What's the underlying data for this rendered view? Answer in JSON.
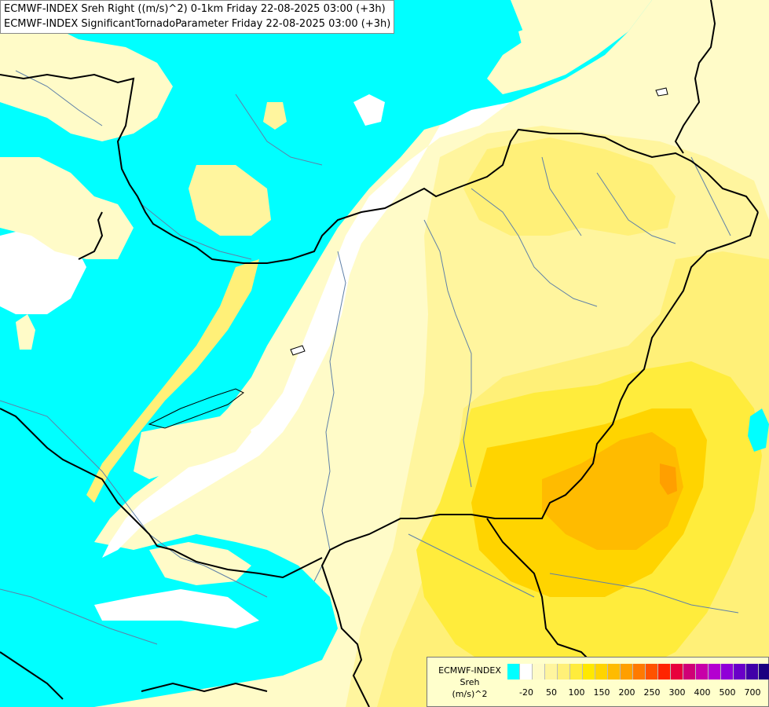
{
  "titles": {
    "line1": "ECMWF-INDEX Sreh Right ((m/s)^2) 0-1km Friday 22-08-2025 03:00 (+3h)",
    "line2": "ECMWF-INDEX SignificantTornadoParameter Friday 22-08-2025 03:00 (+3h)"
  },
  "legend": {
    "model": "ECMWF-INDEX",
    "param": "Sreh",
    "unit": "(m/s)^2",
    "colors": [
      "#00ffff",
      "#ffffff",
      "#fffbc8",
      "#fff59e",
      "#fff078",
      "#ffec3c",
      "#ffe800",
      "#ffd400",
      "#ffbb00",
      "#ff9f00",
      "#ff7a00",
      "#ff5200",
      "#ff2400",
      "#e8003c",
      "#d00076",
      "#c800a8",
      "#b400d0",
      "#9000d8",
      "#6a00c8",
      "#4000a8",
      "#1a0080"
    ],
    "ticks": [
      {
        "label": "-20",
        "index": 1
      },
      {
        "label": "50",
        "index": 3
      },
      {
        "label": "100",
        "index": 5
      },
      {
        "label": "150",
        "index": 7
      },
      {
        "label": "200",
        "index": 9
      },
      {
        "label": "250",
        "index": 11
      },
      {
        "label": "300",
        "index": 13
      },
      {
        "label": "400",
        "index": 15
      },
      {
        "label": "500",
        "index": 17
      },
      {
        "label": "700",
        "index": 19
      }
    ]
  }
}
